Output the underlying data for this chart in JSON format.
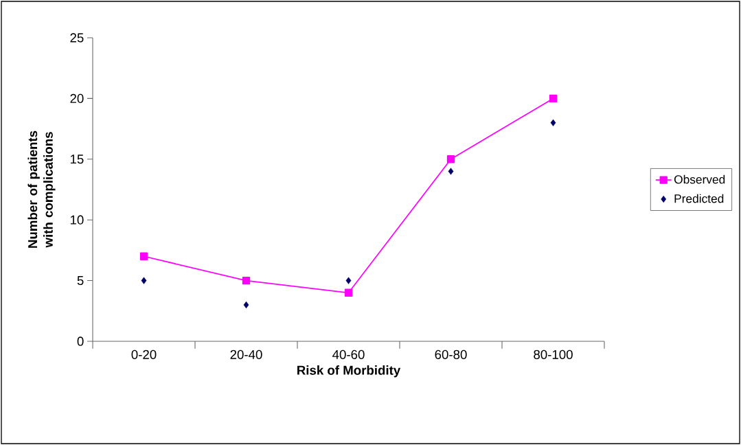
{
  "chart_data": {
    "type": "line",
    "xlabel": "Risk of Morbidity",
    "ylabel": "Number of patients with complications",
    "categories": [
      "0-20",
      "20-40",
      "40-60",
      "60-80",
      "80-100"
    ],
    "series": [
      {
        "name": "Observed",
        "color": "#ff00ff",
        "marker": "square",
        "values": [
          7,
          5,
          4,
          15,
          20
        ]
      },
      {
        "name": "Predicted",
        "type": "scatter",
        "color": "#000066",
        "marker": "diamond",
        "values": [
          5,
          3,
          5,
          14,
          18
        ]
      }
    ],
    "ylim": [
      0,
      25
    ],
    "yticks": [
      0,
      5,
      10,
      15,
      20,
      25
    ],
    "grid": false,
    "legend": "right"
  }
}
